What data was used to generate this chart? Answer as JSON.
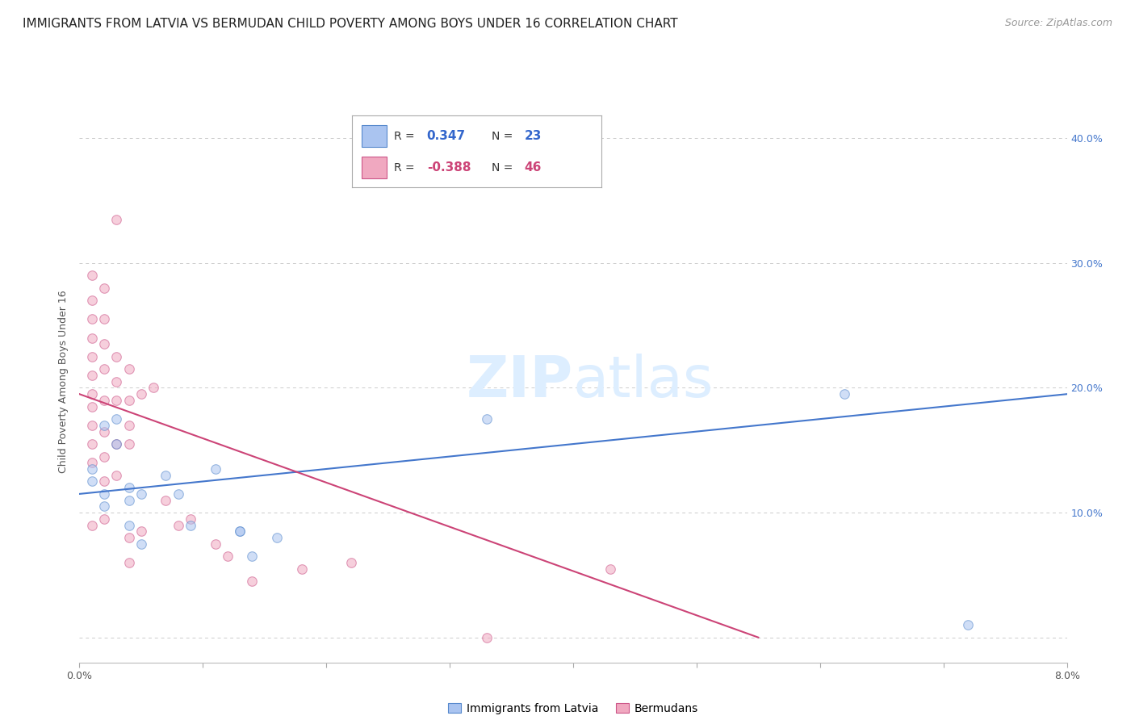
{
  "title": "IMMIGRANTS FROM LATVIA VS BERMUDAN CHILD POVERTY AMONG BOYS UNDER 16 CORRELATION CHART",
  "source": "Source: ZipAtlas.com",
  "ylabel": "Child Poverty Among Boys Under 16",
  "yticks": [
    0.0,
    0.1,
    0.2,
    0.3,
    0.4
  ],
  "ytick_labels": [
    "",
    "10.0%",
    "20.0%",
    "30.0%",
    "40.0%"
  ],
  "xlim": [
    0.0,
    0.08
  ],
  "ylim": [
    -0.02,
    0.43
  ],
  "watermark_zip": "ZIP",
  "watermark_atlas": "atlas",
  "blue_scatter_x": [
    0.001,
    0.001,
    0.002,
    0.002,
    0.002,
    0.003,
    0.003,
    0.004,
    0.004,
    0.004,
    0.005,
    0.005,
    0.007,
    0.008,
    0.009,
    0.011,
    0.013,
    0.013,
    0.014,
    0.016,
    0.033,
    0.062,
    0.072
  ],
  "blue_scatter_y": [
    0.125,
    0.135,
    0.17,
    0.115,
    0.105,
    0.175,
    0.155,
    0.12,
    0.11,
    0.09,
    0.115,
    0.075,
    0.13,
    0.115,
    0.09,
    0.135,
    0.085,
    0.085,
    0.065,
    0.08,
    0.175,
    0.195,
    0.01
  ],
  "pink_scatter_x": [
    0.001,
    0.001,
    0.001,
    0.001,
    0.001,
    0.001,
    0.001,
    0.001,
    0.001,
    0.001,
    0.001,
    0.001,
    0.002,
    0.002,
    0.002,
    0.002,
    0.002,
    0.002,
    0.002,
    0.002,
    0.002,
    0.003,
    0.003,
    0.003,
    0.003,
    0.003,
    0.003,
    0.004,
    0.004,
    0.004,
    0.004,
    0.004,
    0.004,
    0.005,
    0.005,
    0.006,
    0.007,
    0.008,
    0.009,
    0.011,
    0.012,
    0.014,
    0.018,
    0.022,
    0.033,
    0.043
  ],
  "pink_scatter_y": [
    0.29,
    0.27,
    0.255,
    0.24,
    0.225,
    0.21,
    0.195,
    0.185,
    0.17,
    0.155,
    0.14,
    0.09,
    0.28,
    0.255,
    0.235,
    0.215,
    0.19,
    0.165,
    0.145,
    0.125,
    0.095,
    0.335,
    0.225,
    0.205,
    0.19,
    0.155,
    0.13,
    0.215,
    0.19,
    0.17,
    0.155,
    0.08,
    0.06,
    0.195,
    0.085,
    0.2,
    0.11,
    0.09,
    0.095,
    0.075,
    0.065,
    0.045,
    0.055,
    0.06,
    0.0,
    0.055
  ],
  "blue_line_x": [
    0.0,
    0.08
  ],
  "blue_line_y": [
    0.115,
    0.195
  ],
  "pink_line_x": [
    0.0,
    0.055
  ],
  "pink_line_y": [
    0.195,
    0.0
  ],
  "scatter_alpha": 0.55,
  "scatter_size": 70,
  "blue_color": "#aac4f0",
  "pink_color": "#f0a8c0",
  "blue_edge_color": "#5588cc",
  "pink_edge_color": "#cc5588",
  "blue_line_color": "#4477cc",
  "pink_line_color": "#cc4477",
  "title_fontsize": 11,
  "axis_label_fontsize": 9,
  "tick_fontsize": 9,
  "source_fontsize": 9,
  "background_color": "#ffffff",
  "grid_color": "#cccccc"
}
